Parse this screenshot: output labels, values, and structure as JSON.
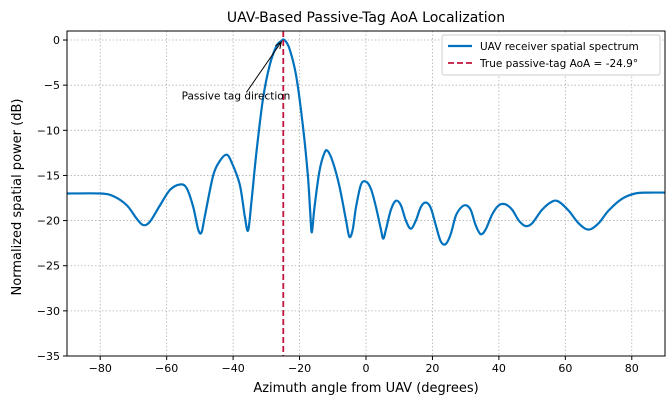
{
  "chart_data": {
    "type": "line",
    "title": "UAV-Based Passive-Tag AoA Localization",
    "xlabel": "Azimuth angle from UAV (degrees)",
    "ylabel": "Normalized spatial power (dB)",
    "xlim": [
      -90,
      90
    ],
    "ylim": [
      -35,
      1
    ],
    "x_ticks": [
      -80,
      -60,
      -40,
      -20,
      0,
      20,
      40,
      60,
      80
    ],
    "x_tick_labels": [
      "−80",
      "−60",
      "−40",
      "−20",
      "0",
      "20",
      "40",
      "60",
      "80"
    ],
    "y_ticks": [
      0,
      -5,
      -10,
      -15,
      -20,
      -25,
      -30,
      -35
    ],
    "y_tick_labels": [
      "0",
      "−5",
      "−10",
      "−15",
      "−20",
      "−25",
      "−30",
      "−35"
    ],
    "grid": true,
    "legend_position": "top-right",
    "series": [
      {
        "name": "UAV receiver spatial spectrum",
        "color": "#0072bd",
        "style": "solid",
        "points": [
          [
            -90,
            -17.0
          ],
          [
            -80,
            -17.0
          ],
          [
            -76,
            -17.3
          ],
          [
            -72,
            -18.3
          ],
          [
            -69,
            -19.8
          ],
          [
            -67,
            -20.5
          ],
          [
            -65,
            -20.1
          ],
          [
            -62,
            -18.3
          ],
          [
            -59,
            -16.6
          ],
          [
            -56,
            -16.0
          ],
          [
            -54,
            -16.4
          ],
          [
            -52,
            -18.5
          ],
          [
            -50.5,
            -21.0
          ],
          [
            -49.5,
            -21.3
          ],
          [
            -48.5,
            -19.5
          ],
          [
            -46,
            -15.0
          ],
          [
            -44,
            -13.4
          ],
          [
            -42,
            -12.7
          ],
          [
            -40.5,
            -13.5
          ],
          [
            -38,
            -16.0
          ],
          [
            -36.5,
            -19.5
          ],
          [
            -35.5,
            -21.1
          ],
          [
            -34.5,
            -18.0
          ],
          [
            -33,
            -12.5
          ],
          [
            -31,
            -6.5
          ],
          [
            -29,
            -2.8
          ],
          [
            -27,
            -0.7
          ],
          [
            -25.5,
            -0.1
          ],
          [
            -24.5,
            0.0
          ],
          [
            -23,
            -1.0
          ],
          [
            -21,
            -4.0
          ],
          [
            -19,
            -9.5
          ],
          [
            -17.5,
            -15.0
          ],
          [
            -16.8,
            -19.0
          ],
          [
            -16.3,
            -21.3
          ],
          [
            -15.5,
            -18.5
          ],
          [
            -14,
            -14.5
          ],
          [
            -12.5,
            -12.5
          ],
          [
            -11.5,
            -12.3
          ],
          [
            -10,
            -13.5
          ],
          [
            -8,
            -16.2
          ],
          [
            -6,
            -20.0
          ],
          [
            -5,
            -21.8
          ],
          [
            -4,
            -21.0
          ],
          [
            -3,
            -18.5
          ],
          [
            -1.5,
            -16.0
          ],
          [
            0,
            -15.7
          ],
          [
            1.5,
            -16.5
          ],
          [
            3,
            -18.5
          ],
          [
            4.5,
            -21.0
          ],
          [
            5.2,
            -22.0
          ],
          [
            6,
            -21.0
          ],
          [
            7.5,
            -18.8
          ],
          [
            9,
            -17.8
          ],
          [
            10.5,
            -18.3
          ],
          [
            12,
            -20.0
          ],
          [
            13.5,
            -20.9
          ],
          [
            15,
            -20.0
          ],
          [
            16.5,
            -18.5
          ],
          [
            18,
            -18.0
          ],
          [
            19.5,
            -18.6
          ],
          [
            21,
            -20.5
          ],
          [
            22.5,
            -22.3
          ],
          [
            24,
            -22.6
          ],
          [
            25.5,
            -21.5
          ],
          [
            27,
            -19.5
          ],
          [
            28.5,
            -18.6
          ],
          [
            30,
            -18.3
          ],
          [
            31.5,
            -18.8
          ],
          [
            33,
            -20.5
          ],
          [
            34.5,
            -21.5
          ],
          [
            36,
            -21.0
          ],
          [
            38,
            -19.3
          ],
          [
            40,
            -18.3
          ],
          [
            42,
            -18.2
          ],
          [
            44,
            -18.8
          ],
          [
            46,
            -20.0
          ],
          [
            48,
            -20.6
          ],
          [
            50,
            -20.3
          ],
          [
            53,
            -18.8
          ],
          [
            56,
            -17.9
          ],
          [
            58,
            -17.9
          ],
          [
            61,
            -18.9
          ],
          [
            64,
            -20.3
          ],
          [
            67,
            -21.0
          ],
          [
            70,
            -20.3
          ],
          [
            73,
            -18.9
          ],
          [
            77,
            -17.6
          ],
          [
            81,
            -17.0
          ],
          [
            85,
            -16.9
          ],
          [
            90,
            -16.9
          ]
        ]
      },
      {
        "name": "True passive-tag AoA = -24.9°",
        "color": "#c0143c",
        "style": "dashed",
        "vertical_x": -24.9
      }
    ],
    "annotations": [
      {
        "text": "Passive tag direction",
        "arrow_from": [
          -36,
          -5.8
        ],
        "arrow_to": [
          -24.9,
          0
        ]
      }
    ]
  }
}
